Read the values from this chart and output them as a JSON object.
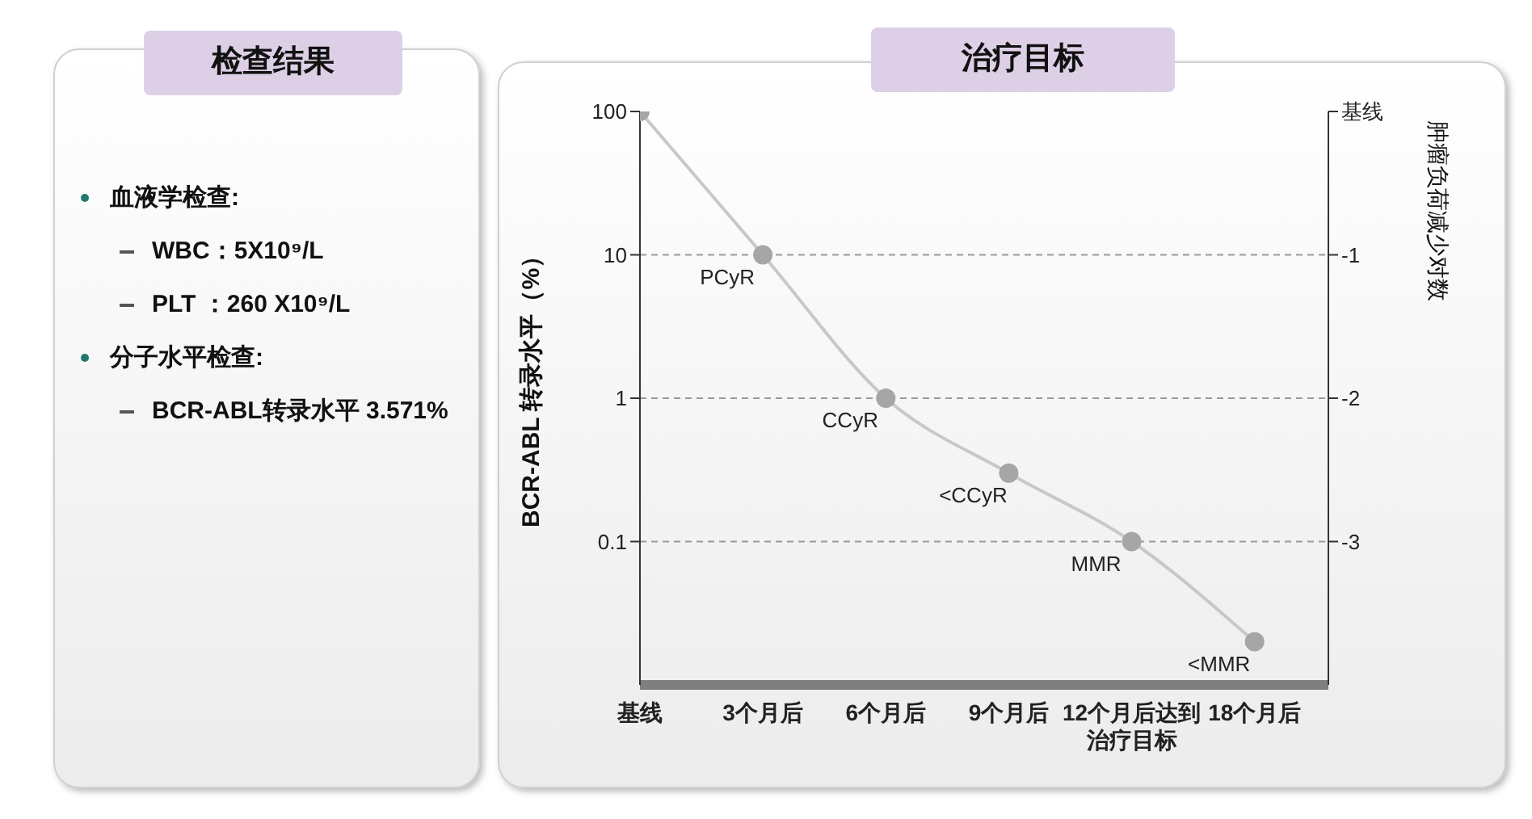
{
  "chart_data": [
    {
      "type": "other",
      "title": "检查结果",
      "annotations": [
        "血液学检查:",
        "WBC：5X10⁹/L",
        "PLT ：260 X10⁹/L",
        "分子水平检查:",
        "BCR-ABL转录水平 3.571%"
      ]
    },
    {
      "type": "line",
      "title": "治疗目标",
      "categories": [
        "基线",
        "3个月后",
        "6个月后",
        "9个月后",
        "12个月后达到治疗目标",
        "18个月后"
      ],
      "series": [
        {
          "color": "#c8c8c8",
          "values": [
            100,
            10,
            1,
            0.3,
            0.1,
            0.02
          ],
          "value_labels": [
            null,
            "PCyR",
            "CCyR",
            "<CCyR",
            "MMR",
            "<MMR"
          ]
        }
      ],
      "log": true,
      "ylim": [
        0.01,
        100
      ],
      "yticks": [
        100,
        10,
        1,
        0.1
      ],
      "y2lim": [
        -4,
        0
      ],
      "y2ticks": [
        {
          "value": 0,
          "label": "基线"
        },
        -1,
        -2,
        -3
      ],
      "ylabel": "BCR-ABL 转录水平（%）",
      "y2label": "肿瘤负荷减少对数",
      "ref_lines": [
        {
          "axis": "y",
          "value": 10,
          "line_style": "dashed"
        },
        {
          "axis": "y",
          "value": 1,
          "line_style": "dashed"
        },
        {
          "axis": "y",
          "value": 0.1,
          "line_style": "dashed"
        }
      ],
      "marker": "circle"
    }
  ]
}
